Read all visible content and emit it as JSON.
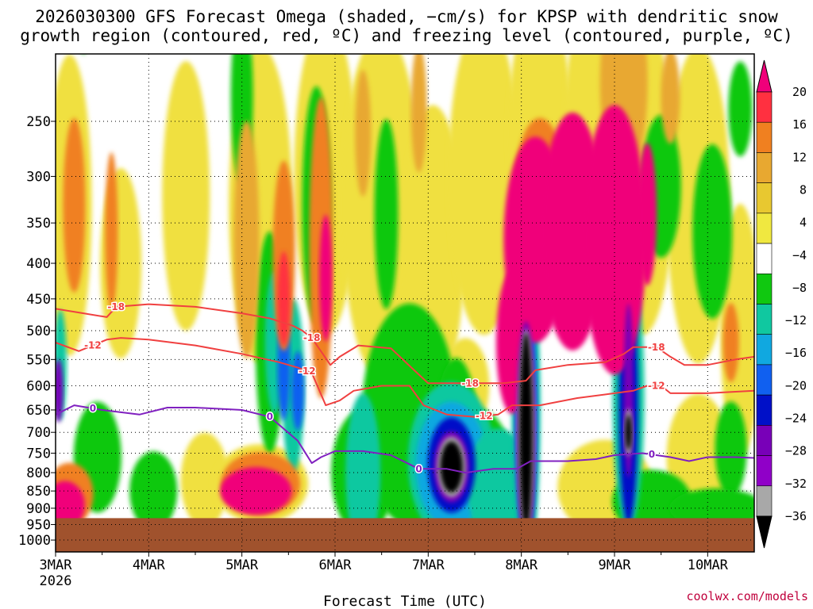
{
  "title": {
    "line1": "2026030300 GFS Forecast Omega (shaded, −cm/s) for KPSP with dendritic snow",
    "line2": "growth region (contoured, red, ºC) and freezing level (contoured, purple, ºC)"
  },
  "credit": "coolwx.com/models",
  "chart_data": {
    "type": "heatmap",
    "xlabel": "Forecast Time (UTC)",
    "ylabel": "",
    "x_ticks": [
      "3MAR",
      "4MAR",
      "5MAR",
      "6MAR",
      "7MAR",
      "8MAR",
      "9MAR",
      "10MAR"
    ],
    "x_year_label": "2026",
    "x_range_days": [
      0,
      7.5
    ],
    "y_ticks": [
      250,
      300,
      350,
      400,
      450,
      500,
      550,
      600,
      650,
      700,
      750,
      800,
      850,
      900,
      950,
      1000
    ],
    "y_range_hpa": [
      200,
      1040
    ],
    "y_scale": "log",
    "grid": "dotted",
    "ground_top_hpa": 930,
    "colorbar": {
      "labels": [
        "20",
        "16",
        "12",
        "8",
        "4",
        "−4",
        "−8",
        "−12",
        "−16",
        "−20",
        "−24",
        "−28",
        "−32",
        "−36"
      ],
      "colors": [
        "#f0007a",
        "#ff3040",
        "#f08020",
        "#e8a830",
        "#e8c830",
        "#f0e840",
        "#ffffff",
        "#10c810",
        "#10c8a0",
        "#10a8e0",
        "#1060f0",
        "#0010c8",
        "#7800b8",
        "#9000c8",
        "#a8a8a8",
        "#000000"
      ]
    },
    "colors": {
      "ground": "#a0522d",
      "dgz": "#f04040",
      "freezing": "#8020c0"
    },
    "series": [
      {
        "name": "-18",
        "x": [
          0,
          0.3,
          0.55,
          0.65,
          1.0,
          1.5,
          2.0,
          2.3,
          2.55,
          2.65,
          2.75,
          2.95,
          3.05,
          3.25,
          3.6,
          3.85,
          4.0,
          4.2,
          4.5,
          4.8,
          5.05,
          5.15,
          5.5,
          5.9,
          6.1,
          6.2,
          6.45,
          6.6,
          6.75,
          7.0,
          7.3,
          7.5
        ],
        "y": [
          465,
          472,
          478,
          462,
          458,
          462,
          472,
          480,
          492,
          500,
          512,
          560,
          545,
          525,
          530,
          570,
          595,
          595,
          595,
          595,
          590,
          570,
          560,
          555,
          540,
          528,
          528,
          545,
          560,
          560,
          550,
          545
        ],
        "label_x": [
          0.65,
          2.75,
          4.45,
          6.45
        ],
        "label_text": "-18"
      },
      {
        "name": "-12",
        "x": [
          0,
          0.25,
          0.55,
          0.7,
          1.0,
          1.5,
          2.0,
          2.4,
          2.6,
          2.75,
          2.9,
          3.05,
          3.2,
          3.5,
          3.8,
          3.95,
          4.2,
          4.5,
          4.75,
          4.9,
          5.2,
          5.6,
          6.0,
          6.2,
          6.35,
          6.5,
          6.6,
          7.0,
          7.3,
          7.5
        ],
        "y": [
          520,
          535,
          515,
          512,
          515,
          525,
          540,
          555,
          565,
          575,
          640,
          630,
          610,
          600,
          600,
          640,
          660,
          665,
          660,
          640,
          640,
          625,
          615,
          610,
          600,
          600,
          615,
          615,
          612,
          610
        ],
        "label_x": [
          0.4,
          2.7,
          4.6,
          6.45
        ],
        "label_text": "-12"
      },
      {
        "name": "0",
        "x": [
          0,
          0.2,
          0.5,
          0.9,
          1.2,
          1.5,
          2.0,
          2.3,
          2.6,
          2.75,
          2.85,
          3.0,
          3.3,
          3.6,
          3.9,
          4.2,
          4.4,
          4.7,
          4.95,
          5.1,
          5.3,
          5.5,
          5.8,
          6.0,
          6.3,
          6.6,
          6.8,
          7.0,
          7.3,
          7.5
        ],
        "y": [
          660,
          640,
          650,
          660,
          645,
          645,
          650,
          665,
          720,
          775,
          760,
          745,
          745,
          755,
          790,
          790,
          800,
          790,
          790,
          770,
          770,
          770,
          765,
          755,
          750,
          760,
          770,
          760,
          760,
          762
        ],
        "label_x": [
          0.4,
          2.3,
          3.9,
          6.4
        ],
        "label_text": "0"
      }
    ]
  }
}
